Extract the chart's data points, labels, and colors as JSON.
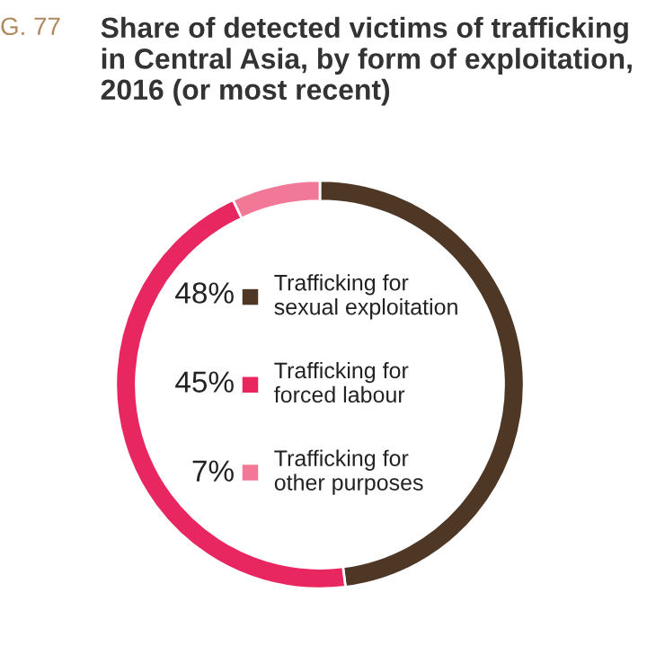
{
  "chart_data": {
    "type": "donut",
    "title": "Share of detected victims of trafficking in Central Asia, by form of exploitation, 2016 (or most recent)",
    "annotations": [
      "G. 77"
    ],
    "categories": [
      "Trafficking for\nsexual exploitation",
      "Trafficking for\nforced labour",
      "Trafficking for\nother purposes"
    ],
    "values": [
      48,
      45,
      7
    ],
    "value_labels": [
      "48%",
      "45%",
      "7%"
    ],
    "colors": [
      "#4f3726",
      "#e8265f",
      "#f27898"
    ],
    "legend": "center"
  }
}
